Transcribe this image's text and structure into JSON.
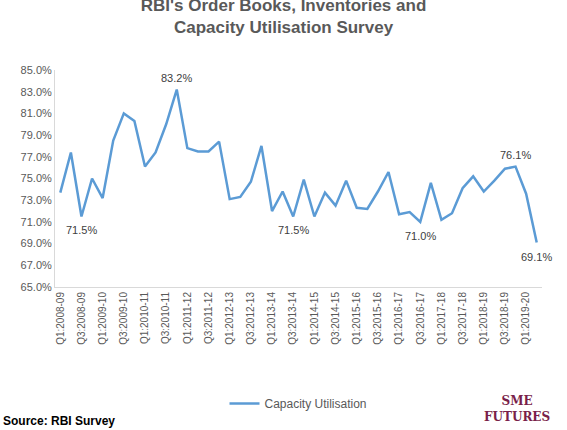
{
  "chart_data": {
    "type": "line",
    "title": "RBI's Order Books, Inventories and Capacity Utilisation Survey",
    "categories": [
      "Q1:2008-09",
      null,
      "Q3:2008-09",
      null,
      "Q1:2009-10",
      null,
      "Q3:2009-10",
      null,
      "Q1:2010-11",
      null,
      "Q3:2010-11",
      null,
      "Q1:2011-12",
      null,
      "Q3:2011-12",
      null,
      "Q1:2012-13",
      null,
      "Q3:2012-13",
      null,
      "Q1:2013-14",
      null,
      "Q3:2013-14",
      null,
      "Q1:2014-15",
      null,
      "Q3:2014-15",
      null,
      "Q1:2015-16",
      null,
      "Q3:2015-16",
      null,
      "Q1:2016-17",
      null,
      "Q3:2016-17",
      null,
      "Q1:2017-18",
      null,
      "Q3:2017-18",
      null,
      "Q1:2018-19",
      null,
      "Q3:2018-19",
      null,
      "Q1:2019-20",
      null
    ],
    "series": [
      {
        "name": "Capacity Utilisation",
        "color": "#5b9bd5",
        "values": [
          73.7,
          77.4,
          71.5,
          75.0,
          73.2,
          78.5,
          81.0,
          80.3,
          76.1,
          77.4,
          80.0,
          83.2,
          77.8,
          77.5,
          77.5,
          78.4,
          73.1,
          73.3,
          74.7,
          78.0,
          72.0,
          73.8,
          71.5,
          74.9,
          71.5,
          73.7,
          72.5,
          74.8,
          72.3,
          72.2,
          73.8,
          75.6,
          71.7,
          71.9,
          71.0,
          74.6,
          71.2,
          71.8,
          74.1,
          75.2,
          73.8,
          74.8,
          75.9,
          76.1,
          73.6,
          69.1
        ]
      }
    ],
    "ylim": [
      65,
      85
    ],
    "yticks": [
      {
        "value": 65,
        "label": "65.0%"
      },
      {
        "value": 67,
        "label": "67.0%"
      },
      {
        "value": 69,
        "label": "69.0%"
      },
      {
        "value": 71,
        "label": "71.0%"
      },
      {
        "value": 73,
        "label": "73.0%"
      },
      {
        "value": 75,
        "label": "75.0%"
      },
      {
        "value": 77,
        "label": "77.0%"
      },
      {
        "value": 79,
        "label": "79.0%"
      },
      {
        "value": 81,
        "label": "81.0%"
      },
      {
        "value": 83,
        "label": "83.0%"
      },
      {
        "value": 85,
        "label": "85.0%"
      }
    ],
    "annotations": [
      {
        "text": "71.5%",
        "at": 2
      },
      {
        "text": "83.2%",
        "at": 11
      },
      {
        "text": "71.5%",
        "at": 22
      },
      {
        "text": "71.0%",
        "at": 34
      },
      {
        "text": "76.1%",
        "at": 43
      },
      {
        "text": "69.1%",
        "at": 45
      }
    ],
    "source": "Source: RBI Survey",
    "logo_text": [
      "SME",
      "FUTURES"
    ],
    "grid": false,
    "legend": "bottom"
  }
}
